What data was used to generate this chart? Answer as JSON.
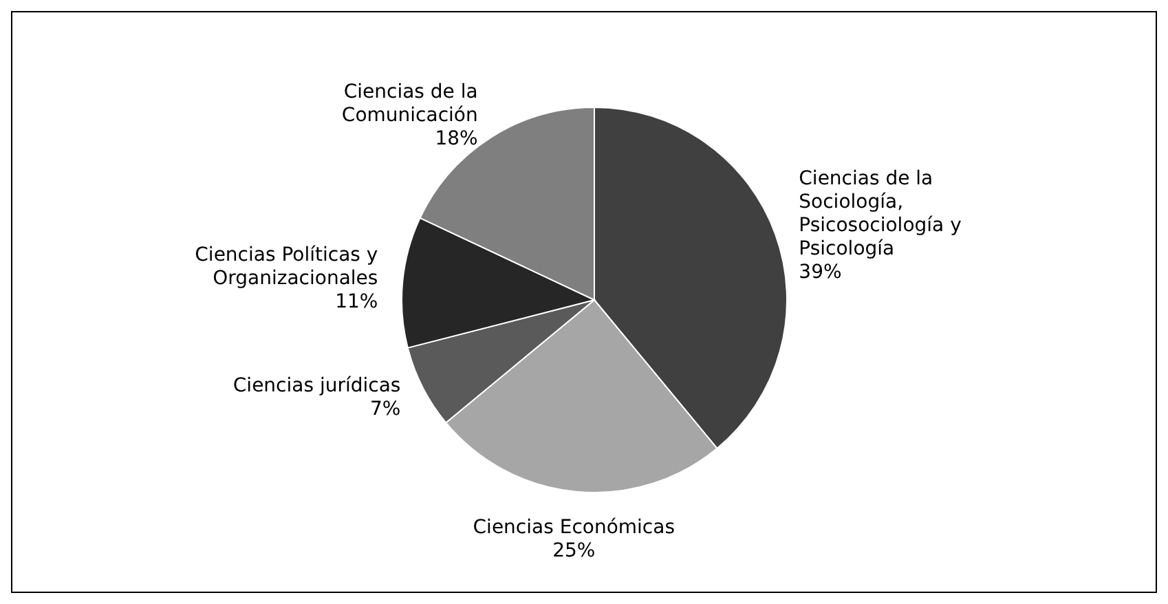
{
  "chart_data": {
    "type": "pie",
    "categories": [
      "Ciencias de la Sociología, Psicosociología y Psicología",
      "Ciencias Económicas",
      "Ciencias jurídicas",
      "Ciencias Políticas y Organizacionales",
      "Ciencias de la Comunicación"
    ],
    "values": [
      39,
      25,
      7,
      11,
      18
    ],
    "value_labels": [
      "39%",
      "25%",
      "7%",
      "11%",
      "18%"
    ],
    "colors": [
      "#404040",
      "#a6a6a6",
      "#5a5a5a",
      "#262626",
      "#7f7f7f"
    ]
  }
}
